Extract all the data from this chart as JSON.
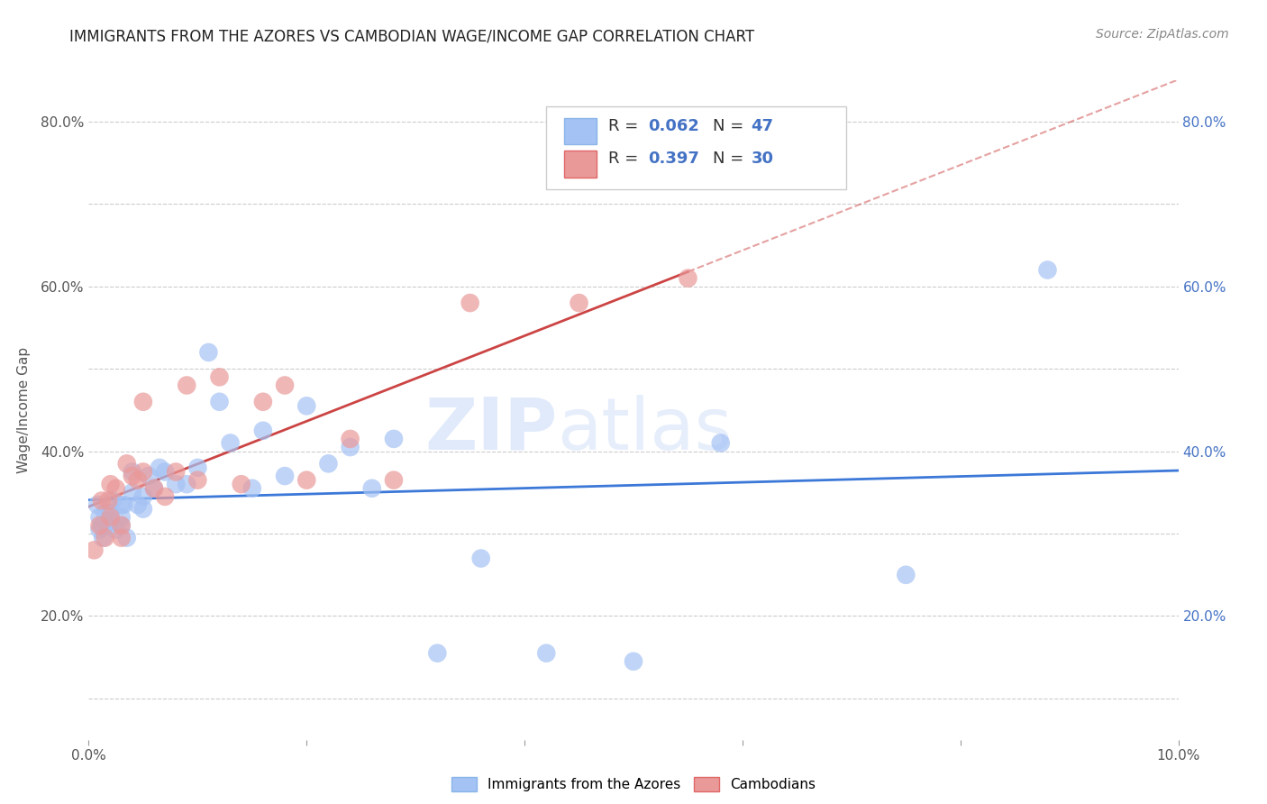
{
  "title": "IMMIGRANTS FROM THE AZORES VS CAMBODIAN WAGE/INCOME GAP CORRELATION CHART",
  "source": "Source: ZipAtlas.com",
  "ylabel": "Wage/Income Gap",
  "xlim": [
    0.0,
    0.1
  ],
  "ylim": [
    0.05,
    0.85
  ],
  "xtick_positions": [
    0.0,
    0.02,
    0.04,
    0.06,
    0.08,
    0.1
  ],
  "xticklabels": [
    "0.0%",
    "",
    "",
    "",
    "",
    "10.0%"
  ],
  "ytick_positions": [
    0.1,
    0.2,
    0.3,
    0.4,
    0.5,
    0.6,
    0.7,
    0.8
  ],
  "yticklabels": [
    "",
    "20.0%",
    "",
    "40.0%",
    "",
    "60.0%",
    "",
    "80.0%"
  ],
  "legend1_r": "0.062",
  "legend1_n": "47",
  "legend2_r": "0.397",
  "legend2_n": "30",
  "color_azores": "#a4c2f4",
  "color_cambodian": "#ea9999",
  "color_azores_line": "#3c78d8",
  "color_cambodian_line": "#cc4444",
  "watermark_zip": "ZIP",
  "watermark_atlas": "atlas",
  "azores_x": [
    0.0008,
    0.001,
    0.001,
    0.0012,
    0.0013,
    0.0015,
    0.0017,
    0.0018,
    0.002,
    0.002,
    0.0022,
    0.0025,
    0.003,
    0.003,
    0.003,
    0.0032,
    0.0035,
    0.004,
    0.004,
    0.0045,
    0.005,
    0.005,
    0.0055,
    0.006,
    0.0065,
    0.007,
    0.008,
    0.009,
    0.01,
    0.011,
    0.012,
    0.013,
    0.015,
    0.016,
    0.018,
    0.02,
    0.022,
    0.024,
    0.026,
    0.028,
    0.032,
    0.036,
    0.042,
    0.05,
    0.058,
    0.075,
    0.088
  ],
  "azores_y": [
    0.335,
    0.305,
    0.32,
    0.31,
    0.295,
    0.325,
    0.315,
    0.31,
    0.315,
    0.325,
    0.34,
    0.305,
    0.32,
    0.31,
    0.335,
    0.335,
    0.295,
    0.375,
    0.35,
    0.335,
    0.345,
    0.33,
    0.37,
    0.355,
    0.38,
    0.375,
    0.36,
    0.36,
    0.38,
    0.52,
    0.46,
    0.41,
    0.355,
    0.425,
    0.37,
    0.455,
    0.385,
    0.405,
    0.355,
    0.415,
    0.155,
    0.27,
    0.155,
    0.145,
    0.41,
    0.25,
    0.62
  ],
  "cambodian_x": [
    0.0005,
    0.001,
    0.0012,
    0.0015,
    0.0018,
    0.002,
    0.002,
    0.0025,
    0.003,
    0.003,
    0.0035,
    0.004,
    0.0045,
    0.005,
    0.005,
    0.006,
    0.007,
    0.008,
    0.009,
    0.01,
    0.012,
    0.014,
    0.016,
    0.018,
    0.02,
    0.024,
    0.028,
    0.035,
    0.045,
    0.055
  ],
  "cambodian_y": [
    0.28,
    0.31,
    0.34,
    0.295,
    0.34,
    0.36,
    0.32,
    0.355,
    0.31,
    0.295,
    0.385,
    0.37,
    0.365,
    0.46,
    0.375,
    0.355,
    0.345,
    0.375,
    0.48,
    0.365,
    0.49,
    0.36,
    0.46,
    0.48,
    0.365,
    0.415,
    0.365,
    0.58,
    0.58,
    0.61
  ]
}
